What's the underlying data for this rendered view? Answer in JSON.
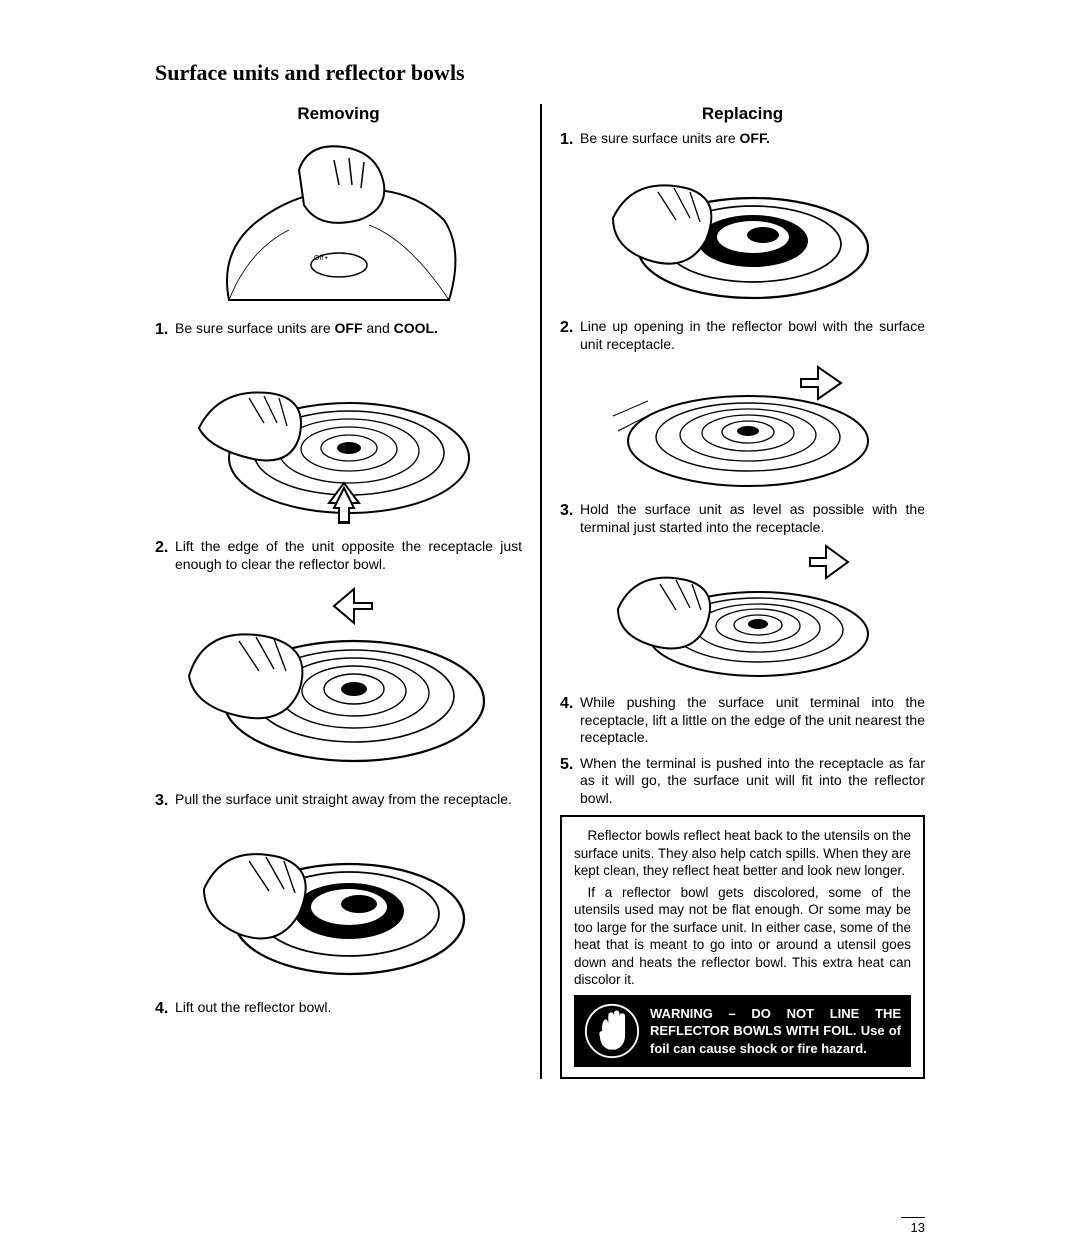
{
  "title": "Surface units and reflector bowls",
  "left": {
    "heading": "Removing",
    "steps": [
      "Be sure surface units are <b>OFF</b> and <b>COOL.</b>",
      "Lift the edge of the unit opposite the receptacle just enough to clear the reflector bowl.",
      "Pull the surface unit straight away from the receptacle.",
      "Lift out the reflector bowl."
    ]
  },
  "right": {
    "heading": "Replacing",
    "steps": [
      "Be sure surface units are <b>OFF.</b>",
      "Line up opening in the reflector bowl with the surface unit receptacle.",
      "Hold the surface unit as level as possible with the terminal just started into the receptacle.",
      "While pushing the surface unit terminal into the receptacle, lift a little on the edge of the unit nearest the receptacle.",
      "When the terminal is pushed into the receptacle as far as it will go, the surface unit will fit into the reflector bowl."
    ],
    "info_p1": "Reflector bowls reflect heat back to the utensils on the surface units. They also help catch spills. When they are kept clean, they reflect heat better and look new longer.",
    "info_p2": "If a reflector bowl gets discolored, some of the utensils used may not be flat enough. Or some may be too large for the surface unit. In either case, some of the heat that is meant to go into or around a utensil goes down and heats the reflector bowl. This extra heat can discolor it.",
    "warning": "WARNING – DO NOT LINE THE REFLECTOR BOWLS WITH FOIL. Use of foil can cause shock or fire hazard."
  },
  "page_number": "13"
}
